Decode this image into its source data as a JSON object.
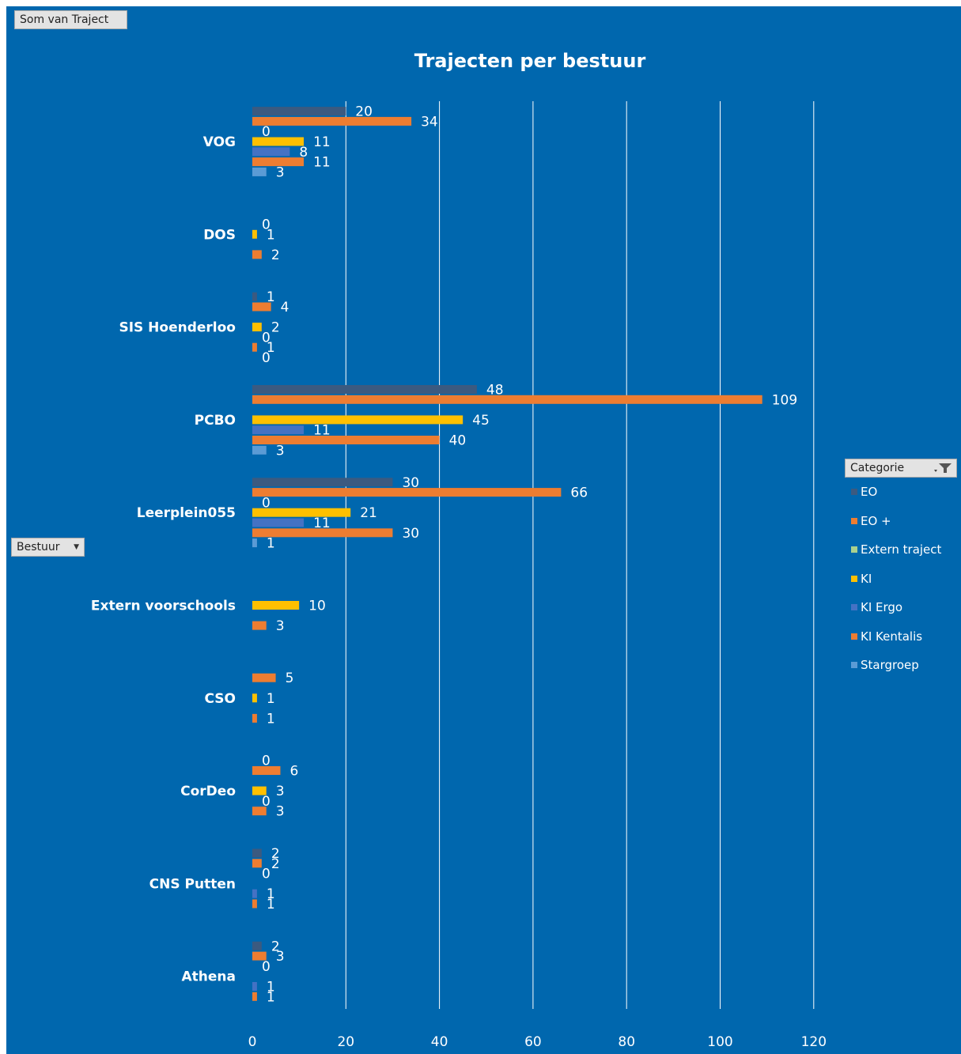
{
  "buttons": {
    "measure_label": "Som van Traject",
    "row_field_label": "Bestuur",
    "legend_field_label": "Categorie"
  },
  "chart_data": {
    "type": "bar",
    "orientation": "horizontal",
    "title": "Trajecten per bestuur",
    "xlabel": "",
    "ylabel": "",
    "xlim": [
      0,
      120
    ],
    "x_ticks": [
      0,
      20,
      40,
      60,
      80,
      100,
      120
    ],
    "grid": true,
    "legend_position": "right",
    "background_color": "#0067ae",
    "categories": [
      "VOG",
      "DOS",
      "SIS Hoenderloo",
      "PCBO",
      "Leerplein055",
      "Extern voorschools",
      "CSO",
      "CorDeo",
      "CNS Putten",
      "Athena"
    ],
    "series": [
      {
        "name": "EO",
        "color": "#3b5a80",
        "values": [
          20,
          null,
          1,
          48,
          30,
          null,
          null,
          0,
          2,
          2
        ]
      },
      {
        "name": "EO +",
        "color": "#ed7d31",
        "values": [
          34,
          null,
          4,
          109,
          66,
          null,
          5,
          6,
          2,
          3
        ]
      },
      {
        "name": "Extern traject",
        "color": "#a9d18e",
        "values": [
          0,
          0,
          null,
          null,
          0,
          null,
          null,
          null,
          0,
          0
        ]
      },
      {
        "name": "KI",
        "color": "#ffc000",
        "values": [
          11,
          1,
          2,
          45,
          21,
          10,
          1,
          3,
          null,
          null
        ]
      },
      {
        "name": "KI Ergo",
        "color": "#4472c4",
        "values": [
          8,
          null,
          0,
          11,
          11,
          null,
          null,
          0,
          1,
          1
        ]
      },
      {
        "name": "KI Kentalis",
        "color": "#ed7d31",
        "values": [
          11,
          2,
          1,
          40,
          30,
          3,
          1,
          3,
          1,
          1
        ]
      },
      {
        "name": "Stargroep",
        "color": "#5b9bd5",
        "values": [
          3,
          null,
          0,
          3,
          1,
          null,
          null,
          null,
          null,
          null
        ]
      }
    ]
  }
}
